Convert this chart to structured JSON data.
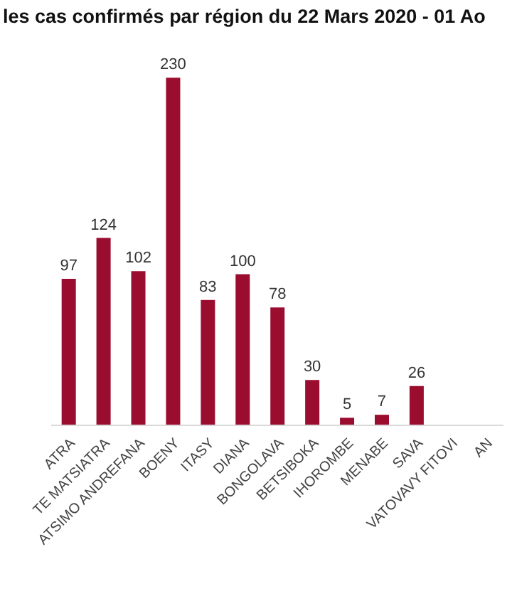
{
  "chart_data": {
    "type": "bar",
    "title": "les cas confirmés par région du 22 Mars 2020 - 01 Ao",
    "categories": [
      "ATRA",
      "TE MATSIATRA",
      "ATSIMO ANDREFANA",
      "BOENY",
      "ITASY",
      "DIANA",
      "BONGOLAVA",
      "BETSIBOKA",
      "IHOROMBE",
      "MENABE",
      "SAVA",
      "VATOVAVY FITOVI",
      "AN"
    ],
    "values": [
      97,
      124,
      102,
      230,
      83,
      100,
      78,
      30,
      5,
      7,
      26,
      null,
      null
    ],
    "color": "#9b0d2f",
    "tick_labels": "x",
    "data_labels": true
  }
}
